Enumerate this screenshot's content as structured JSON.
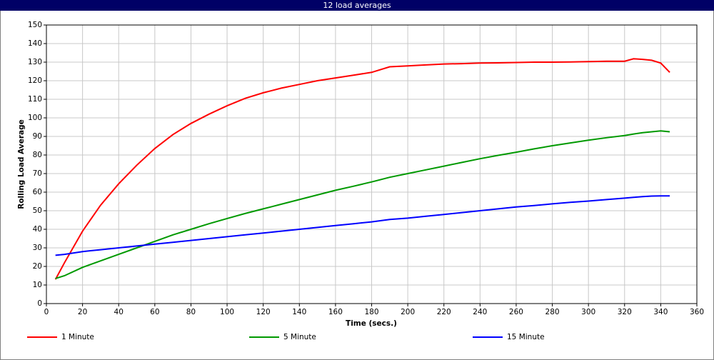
{
  "chart_data": {
    "type": "line",
    "title": "12 load averages",
    "x_label": "Time (secs.)",
    "y_label": "Rolling Load Average",
    "x": [
      5,
      10,
      20,
      30,
      40,
      50,
      60,
      70,
      80,
      90,
      100,
      110,
      120,
      130,
      140,
      150,
      160,
      170,
      180,
      190,
      200,
      210,
      220,
      230,
      240,
      250,
      260,
      270,
      280,
      290,
      300,
      310,
      320,
      325,
      330,
      335,
      340,
      345
    ],
    "series": [
      {
        "name": "1 Minute",
        "color": "#ff0000",
        "values": [
          13,
          22,
          39,
          53,
          64.5,
          74.5,
          83.5,
          91,
          97,
          102,
          106.5,
          110.5,
          113.5,
          116,
          118,
          120,
          121.5,
          123,
          124.5,
          127.5,
          128,
          128.5,
          129,
          129.2,
          129.5,
          129.6,
          129.8,
          130,
          130,
          130.1,
          130.3,
          130.5,
          130.5,
          131.8,
          131.5,
          131,
          129.5,
          124.5
        ]
      },
      {
        "name": "5 Minute",
        "color": "#009900",
        "values": [
          13.5,
          15,
          19.5,
          23,
          26.5,
          30,
          33.5,
          37,
          40,
          43,
          45.8,
          48.5,
          51,
          53.5,
          56,
          58.5,
          61,
          63.2,
          65.5,
          68,
          70,
          72,
          74,
          76,
          78,
          79.8,
          81.5,
          83.3,
          85,
          86.5,
          88,
          89.3,
          90.5,
          91.3,
          92,
          92.5,
          93,
          92.5
        ]
      },
      {
        "name": "15 Minute",
        "color": "#0000ff",
        "values": [
          26,
          26.5,
          28,
          29,
          30,
          31,
          32,
          33,
          34,
          35,
          36,
          37,
          38,
          39,
          40,
          41,
          42,
          43,
          44,
          45.3,
          46,
          47,
          48,
          49,
          50,
          51,
          52,
          52.8,
          53.7,
          54.5,
          55.2,
          56,
          56.8,
          57.2,
          57.6,
          57.9,
          58,
          58
        ]
      }
    ],
    "xlim": [
      0,
      360
    ],
    "xticks": [
      0,
      20,
      40,
      60,
      80,
      100,
      120,
      140,
      160,
      180,
      200,
      220,
      240,
      260,
      280,
      300,
      320,
      340,
      360
    ],
    "ylim": [
      0,
      150
    ],
    "yticks": [
      0,
      10,
      20,
      30,
      40,
      50,
      60,
      70,
      80,
      90,
      100,
      110,
      120,
      130,
      140,
      150
    ],
    "grid": true,
    "legend": "bottom"
  }
}
